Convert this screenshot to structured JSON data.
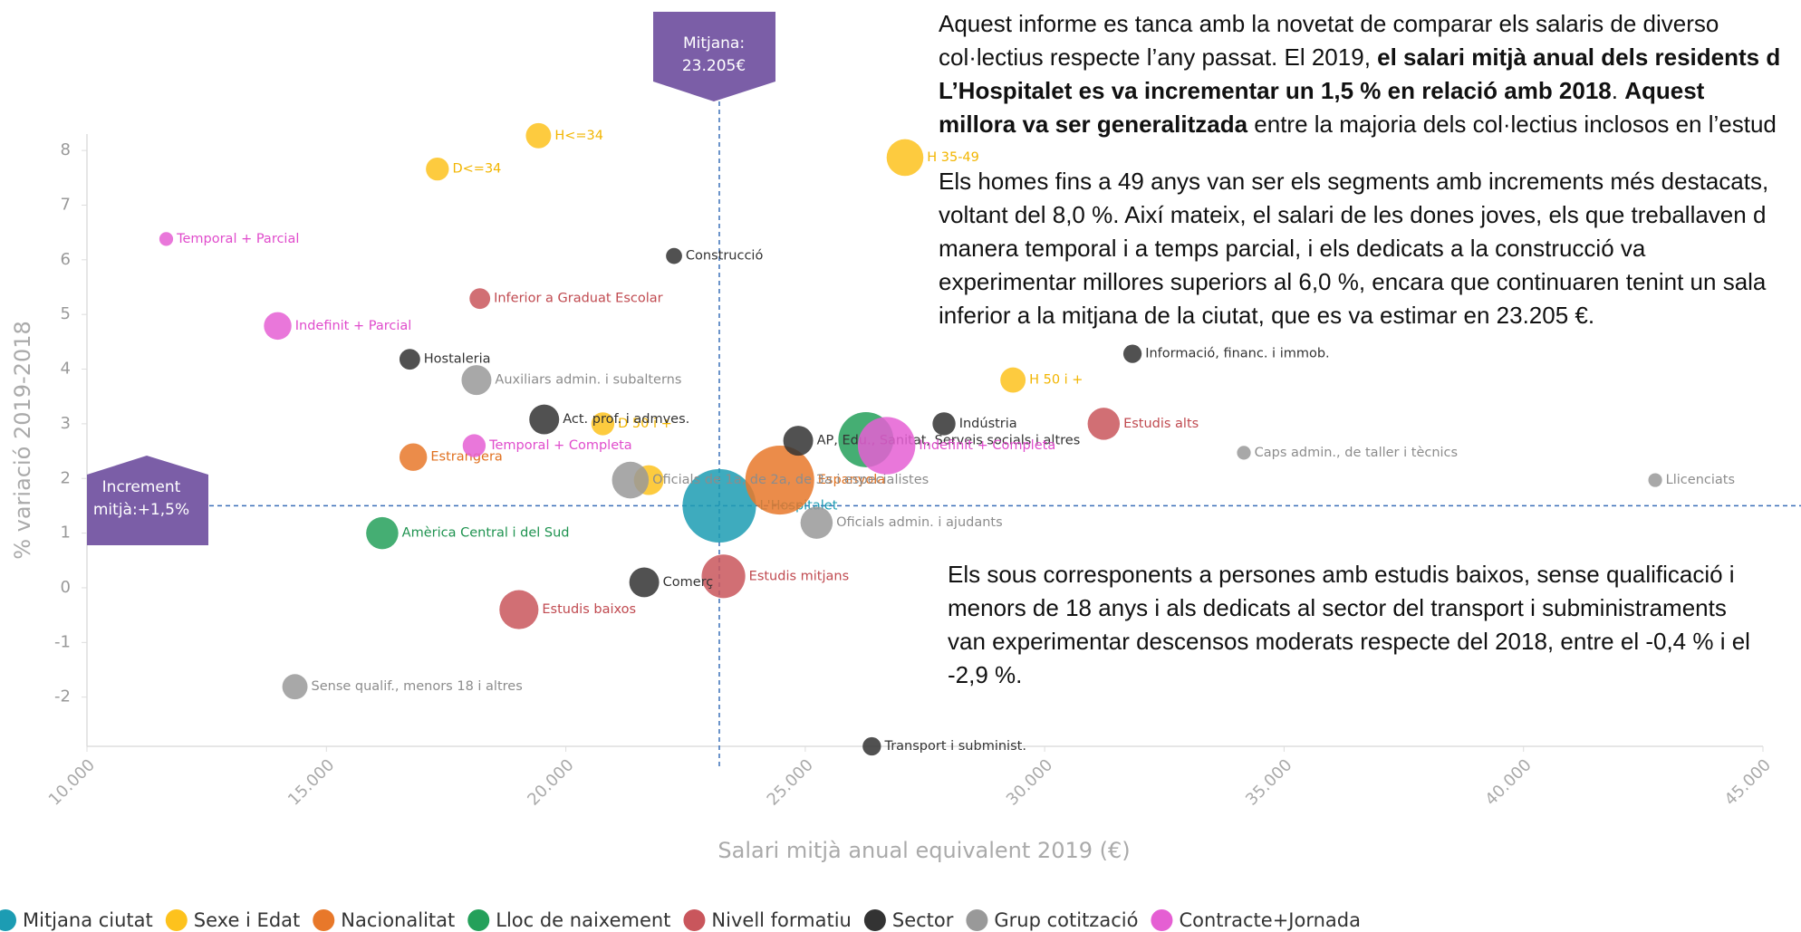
{
  "chart_data": {
    "type": "scatter",
    "xlabel": "Salari mitjà anual equivalent 2019 (€)",
    "ylabel": "% variació 2019-2018",
    "xlim": [
      10000,
      45000
    ],
    "ylim": [
      -2.9,
      8.3
    ],
    "xticks": [
      {
        "value": 10000,
        "label": "10.000"
      },
      {
        "value": 15000,
        "label": "15.000"
      },
      {
        "value": 20000,
        "label": "20.000"
      },
      {
        "value": 25000,
        "label": "25.000"
      },
      {
        "value": 30000,
        "label": "30.000"
      },
      {
        "value": 35000,
        "label": "35.000"
      },
      {
        "value": 40000,
        "label": "40.000"
      },
      {
        "value": 45000,
        "label": "45.000"
      }
    ],
    "yticks": [
      -2,
      -1,
      0,
      1,
      2,
      3,
      4,
      5,
      6,
      7,
      8
    ],
    "grid": false,
    "legend": "bottom",
    "ref_x": 23205,
    "ref_y": 1.5,
    "annotations": [
      {
        "lines": [
          "Mitjana:",
          "23.205€"
        ]
      },
      {
        "lines": [
          "Increment",
          "mitjà:+1,5%"
        ]
      }
    ],
    "series": [
      {
        "name": "Mitjana ciutat",
        "color": "#1c9cb3",
        "label_color": "#1c9cb3",
        "x": [
          23205
        ],
        "values": [
          1.5
        ],
        "sizes": [
          32
        ],
        "labels": [
          "L'Hospitalet"
        ]
      },
      {
        "name": "Sexe i Edat",
        "color": "#fdc21d",
        "label_color": "#f2b500",
        "x": [
          19429,
          17318,
          27083,
          29338,
          20773,
          21732
        ],
        "values": [
          8.27,
          7.66,
          7.87,
          3.8,
          3.0,
          1.97
        ],
        "sizes": [
          11,
          10,
          16,
          11,
          10,
          13
        ],
        "labels": [
          "H<=34",
          "D<=34",
          "H 35-49",
          "H 50 i +",
          "D 50 i +",
          null
        ]
      },
      {
        "name": "Nacionalitat",
        "color": "#e8782a",
        "label_color": "#e0701f",
        "x": [
          16814,
          24468
        ],
        "values": [
          2.39,
          1.97
        ],
        "sizes": [
          12,
          30
        ],
        "labels": [
          "Estrangera",
          "Espanyola"
        ]
      },
      {
        "name": "Lloc de naixement",
        "color": "#24a05a",
        "label_color": "#1f9350",
        "x": [
          16166,
          26267
        ],
        "values": [
          1.0,
          2.71
        ],
        "sizes": [
          14,
          24
        ],
        "labels": [
          "Amèrica Central i del Sud",
          null
        ]
      },
      {
        "name": "Nivell formatiu",
        "color": "#c9565c",
        "label_color": "#c04a50",
        "x": [
          18205,
          31233,
          23292,
          19021
        ],
        "values": [
          5.29,
          3.0,
          0.21,
          -0.4
        ],
        "sizes": [
          9,
          14,
          19,
          17
        ],
        "labels": [
          "Inferior a Graduat Escolar",
          "Estudis alts",
          "Estudis mitjans",
          "Estudis baixos"
        ]
      },
      {
        "name": "Sector",
        "color": "#333333",
        "label_color": "#333333",
        "x": [
          22260,
          16742,
          31834,
          19549,
          27898,
          24853,
          21637,
          26390
        ],
        "values": [
          6.07,
          4.18,
          4.28,
          3.08,
          3.0,
          2.69,
          0.1,
          -2.9
        ],
        "sizes": [
          7,
          9,
          8,
          13,
          10,
          13,
          13,
          8
        ],
        "labels": [
          "Construcció",
          "Hostaleria",
          "Informació, financ. i immob.",
          "Act. prof. i admves.",
          "Indústria",
          "AP, Edu., Sanitat, Serveis socials i altres",
          "Comerç",
          "Transport i subminist."
        ]
      },
      {
        "name": "Grup cotització",
        "color": "#999999",
        "label_color": "#8c8c8c",
        "x": [
          18134,
          34160,
          42750,
          21348,
          25237,
          14343
        ],
        "values": [
          3.8,
          2.47,
          1.97,
          1.97,
          1.19,
          -1.81
        ],
        "sizes": [
          13,
          6,
          6,
          16,
          14,
          11
        ],
        "labels": [
          "Auxiliars admin. i subalterns",
          "Caps admin., de taller i tècnics",
          "Llicenciats",
          "Oficials de 1a, de 2a, de 3a i especialistes",
          "Oficials admin. i ajudants",
          "Sense qualif., menors 18 i altres"
        ]
      },
      {
        "name": "Contracte+Jornada",
        "color": "#e55fd3",
        "label_color": "#e04ccc",
        "x": [
          11655,
          13983,
          18086,
          26699
        ],
        "values": [
          6.38,
          4.79,
          2.6,
          2.6
        ],
        "sizes": [
          6,
          12,
          10,
          25
        ],
        "labels": [
          "Temporal + Parcial",
          "Indefinit + Parcial",
          "Temporal + Completa",
          "Indefinit + Completa"
        ]
      }
    ]
  },
  "text": [
    {
      "lines": [
        [
          {
            "t": "Aquest informe es tanca amb la novetat de comparar els salaris de diverso",
            "bold": false
          }
        ],
        [
          {
            "t": "col·lectius respecte l’any passat. El 2019, ",
            "bold": false
          },
          {
            "t": "el salari mitjà anual dels residents d",
            "bold": true
          }
        ],
        [
          {
            "t": "L’Hospitalet es va incrementar un 1,5 % en relació amb 2018",
            "bold": true
          },
          {
            "t": ". ",
            "bold": false
          },
          {
            "t": "Aquest",
            "bold": true
          }
        ],
        [
          {
            "t": "millora va ser generalitzada",
            "bold": true
          },
          {
            "t": " entre la majoria dels col·lectius inclosos en l’estud",
            "bold": false
          }
        ]
      ]
    },
    {
      "lines": [
        [
          {
            "t": "Els homes fins a 49 anys van ser els segments amb increments més destacats,",
            "bold": false
          }
        ],
        [
          {
            "t": "voltant del 8,0 %. Així mateix, el salari de les dones joves, els que treballaven d",
            "bold": false
          }
        ],
        [
          {
            "t": "manera temporal i a temps parcial, i els dedicats a la construcció va",
            "bold": false
          }
        ],
        [
          {
            "t": "experimentar millores superiors al 6,0 %, encara que continuaren tenint un sala",
            "bold": false
          }
        ],
        [
          {
            "t": "inferior a la mitjana de la ciutat, que es va estimar en 23.205 €.",
            "bold": false
          }
        ]
      ]
    },
    {
      "lines": [
        [
          {
            "t": "Els sous corresponents a persones amb estudis baixos, sense qualificació i",
            "bold": false
          }
        ],
        [
          {
            "t": "menors de 18 anys i als dedicats al sector del transport i subministraments",
            "bold": false
          }
        ],
        [
          {
            "t": "van experimentar descensos moderats respecte del 2018, entre el -0,4 % i el",
            "bold": false
          }
        ],
        [
          {
            "t": "-2,9 %.",
            "bold": false
          }
        ]
      ]
    }
  ]
}
